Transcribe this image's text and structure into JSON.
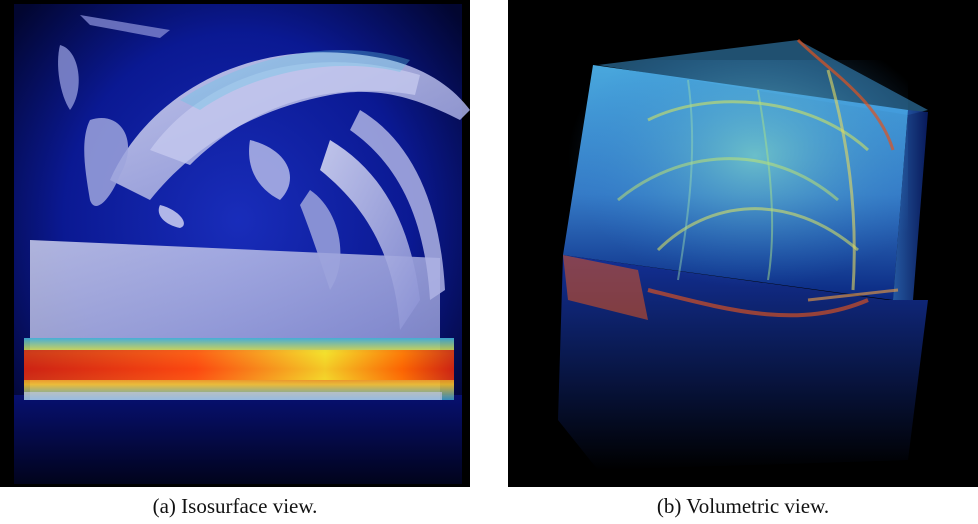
{
  "panels": [
    {
      "id": "a",
      "caption": "(a) Isosurface view.",
      "image_subject": "isosurface-visualization",
      "colors": {
        "background": "#000000",
        "volume": "#0b1a9a",
        "isosurface": "#b9bde6",
        "hot_layer": [
          "#c81e14",
          "#ff6a00",
          "#f5e12a",
          "#7fd94b",
          "#2aa6d6"
        ]
      }
    },
    {
      "id": "b",
      "caption": "(b) Volumetric view.",
      "image_subject": "volume-rendering",
      "colors": {
        "background": "#000000",
        "volume_top": "#4fb6f0",
        "volume_bottom": "#0a2a8c",
        "streak": "#d9e85a",
        "edge": "#e0531f"
      }
    }
  ]
}
